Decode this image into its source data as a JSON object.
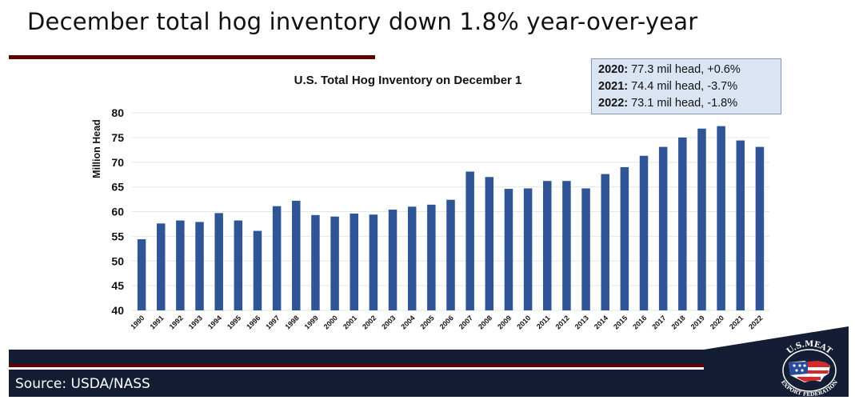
{
  "slide": {
    "title": "December total hog inventory down 1.8% year-over-year",
    "source": "Source: USDA/NASS",
    "logo_top_text": "U.S.MEAT",
    "logo_bottom_text": "EXPORT FEDERATION"
  },
  "callout": {
    "lines": [
      {
        "year": "2020:",
        "text": " 77.3 mil head, +0.6%"
      },
      {
        "year": "2021:",
        "text": " 74.4 mil head, -3.7%"
      },
      {
        "year": "2022:",
        "text": " 73.1 mil head, -1.8%"
      }
    ]
  },
  "colors": {
    "bar": "#2f5597",
    "title_rule": "#5c0000",
    "footer_navy": "#141d33",
    "footer_red": "#6b0000",
    "callout_bg": "#dbe4f3",
    "gridline": "#e6e6e6"
  },
  "chart_data": {
    "type": "bar",
    "title": "U.S. Total Hog Inventory on December 1",
    "xlabel": "",
    "ylabel": "Million Head",
    "ylim": [
      40,
      80
    ],
    "yticks": [
      40,
      45,
      50,
      55,
      60,
      65,
      70,
      75,
      80
    ],
    "grid": true,
    "legend": "none",
    "categories": [
      "1990",
      "1991",
      "1992",
      "1993",
      "1994",
      "1995",
      "1996",
      "1997",
      "1998",
      "1999",
      "2000",
      "2001",
      "2002",
      "2003",
      "2004",
      "2005",
      "2006",
      "2007",
      "2008",
      "2009",
      "2010",
      "2011",
      "2012",
      "2013",
      "2014",
      "2015",
      "2016",
      "2017",
      "2018",
      "2019",
      "2020",
      "2021",
      "2022"
    ],
    "values": [
      54.4,
      57.6,
      58.2,
      57.9,
      59.7,
      58.2,
      56.1,
      61.1,
      62.2,
      59.3,
      59.0,
      59.6,
      59.4,
      60.4,
      61.0,
      61.4,
      62.4,
      68.1,
      67.0,
      64.6,
      64.7,
      66.2,
      66.2,
      64.7,
      67.6,
      69.0,
      71.3,
      73.1,
      75.0,
      76.8,
      77.3,
      74.4,
      73.1
    ]
  }
}
